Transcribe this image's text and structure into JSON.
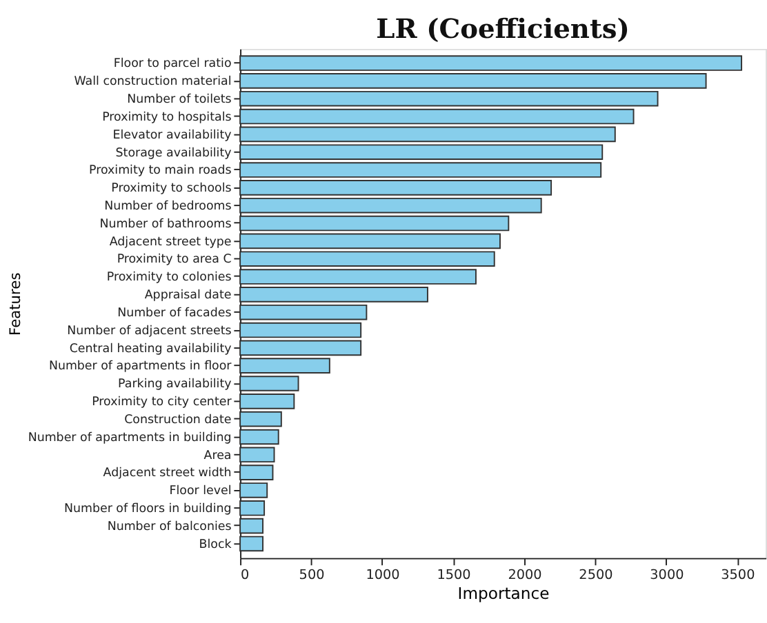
{
  "chart_data": {
    "type": "bar",
    "orientation": "horizontal",
    "title": "LR (Coefficients)",
    "xlabel": "Importance",
    "ylabel": "Features",
    "categories": [
      "Floor to parcel ratio",
      "Wall construction material",
      "Number of toilets",
      "Proximity to hospitals",
      "Elevator availability",
      "Storage availability",
      "Proximity to main roads",
      "Proximity to schools",
      "Number of bedrooms",
      "Number of bathrooms",
      "Adjacent street type",
      "Proximity to area C",
      "Proximity to colonies",
      "Appraisal date",
      "Number of facades",
      "Number of adjacent streets",
      "Central heating availability",
      "Number of apartments in floor",
      "Parking availability",
      "Proximity to city center",
      "Construction date",
      "Number of apartments in building",
      "Area",
      "Adjacent street width",
      "Floor level",
      "Number of floors in building",
      "Number of balconies",
      "Block"
    ],
    "values": [
      3530,
      3280,
      2940,
      2770,
      2640,
      2550,
      2540,
      2190,
      2120,
      1890,
      1830,
      1790,
      1660,
      1320,
      890,
      850,
      850,
      630,
      410,
      380,
      290,
      270,
      240,
      230,
      190,
      170,
      160,
      160
    ],
    "color": "#87ceeb",
    "xlim": [
      0,
      3700
    ],
    "xticks": [
      0,
      500,
      1000,
      1500,
      2000,
      2500,
      3000,
      3500
    ],
    "grid": false
  }
}
